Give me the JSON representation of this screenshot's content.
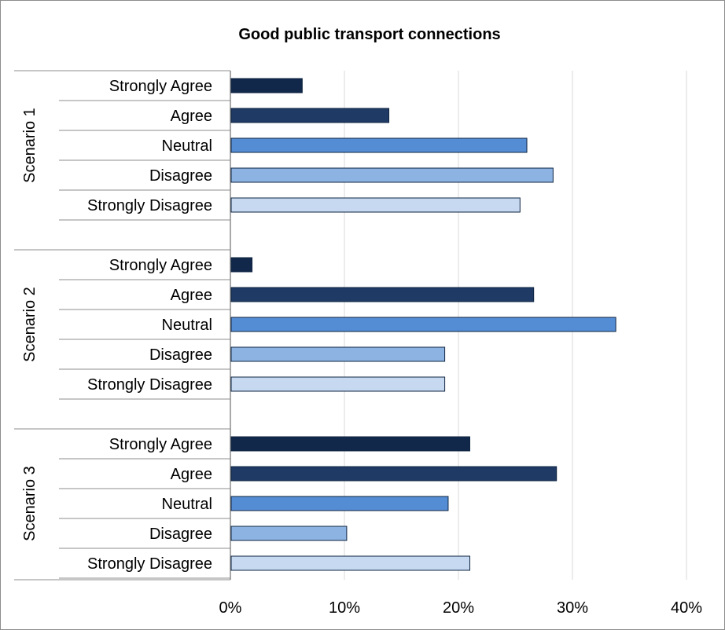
{
  "chart_data": {
    "type": "bar",
    "orientation": "horizontal",
    "title": "Good public transport connections",
    "xlabel": "",
    "ylabel": "",
    "xlim": [
      0,
      40
    ],
    "x_ticks": [
      "0%",
      "10%",
      "20%",
      "30%",
      "40%"
    ],
    "grid": "vertical",
    "legend": "none",
    "groups": [
      {
        "name": "Scenario 1",
        "categories": [
          "Strongly Agree",
          "Agree",
          "Neutral",
          "Disagree",
          "Strongly Disagree"
        ],
        "values": [
          6.3,
          13.9,
          26.0,
          28.3,
          25.4
        ]
      },
      {
        "name": "Scenario 2",
        "categories": [
          "Strongly Agree",
          "Agree",
          "Neutral",
          "Disagree",
          "Strongly Disagree"
        ],
        "values": [
          1.9,
          26.6,
          33.8,
          18.8,
          18.8
        ]
      },
      {
        "name": "Scenario 3",
        "categories": [
          "Strongly Agree",
          "Agree",
          "Neutral",
          "Disagree",
          "Strongly Disagree"
        ],
        "values": [
          21.0,
          28.6,
          19.1,
          10.2,
          21.0
        ]
      }
    ],
    "colors": {
      "Strongly Agree": "#12284a",
      "Agree": "#1f3a64",
      "Neutral": "#548dd4",
      "Disagree": "#8db3e2",
      "Strongly Disagree": "#c6d9f1",
      "bar_outline": "#0f2440",
      "gridline": "#d9d9d9",
      "axis": "#8c8c8c"
    }
  }
}
